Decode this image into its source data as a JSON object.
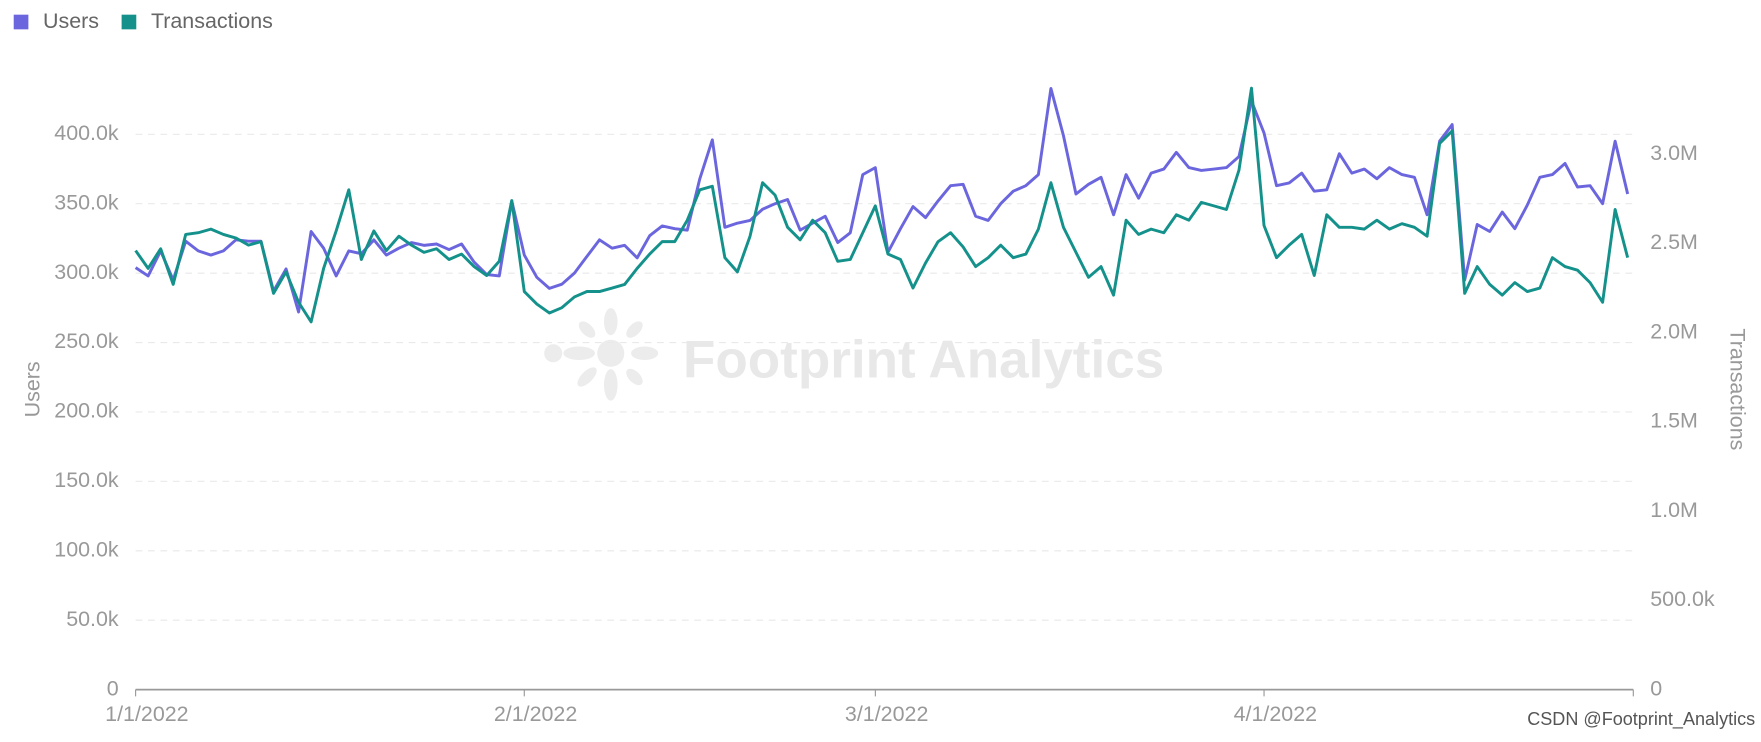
{
  "chart_data": {
    "type": "line",
    "legend": "top-left",
    "grid": true,
    "y_label": "Users",
    "y2_label": "Transactions",
    "watermark": "Footprint Analytics",
    "credit": "CSDN @Footprint_Analytics",
    "x": [
      "1/1/2022",
      "1/2/2022",
      "1/3/2022",
      "1/4/2022",
      "1/5/2022",
      "1/6/2022",
      "1/7/2022",
      "1/8/2022",
      "1/9/2022",
      "1/10/2022",
      "1/11/2022",
      "1/12/2022",
      "1/13/2022",
      "1/14/2022",
      "1/15/2022",
      "1/16/2022",
      "1/17/2022",
      "1/18/2022",
      "1/19/2022",
      "1/20/2022",
      "1/21/2022",
      "1/22/2022",
      "1/23/2022",
      "1/24/2022",
      "1/25/2022",
      "1/26/2022",
      "1/27/2022",
      "1/28/2022",
      "1/29/2022",
      "1/30/2022",
      "1/31/2022",
      "2/1/2022",
      "2/2/2022",
      "2/3/2022",
      "2/4/2022",
      "2/5/2022",
      "2/6/2022",
      "2/7/2022",
      "2/8/2022",
      "2/9/2022",
      "2/10/2022",
      "2/11/2022",
      "2/12/2022",
      "2/13/2022",
      "2/14/2022",
      "2/15/2022",
      "2/16/2022",
      "2/17/2022",
      "2/18/2022",
      "2/19/2022",
      "2/20/2022",
      "2/21/2022",
      "2/22/2022",
      "2/23/2022",
      "2/24/2022",
      "2/25/2022",
      "2/26/2022",
      "2/27/2022",
      "2/28/2022",
      "3/1/2022",
      "3/2/2022",
      "3/3/2022",
      "3/4/2022",
      "3/5/2022",
      "3/6/2022",
      "3/7/2022",
      "3/8/2022",
      "3/9/2022",
      "3/10/2022",
      "3/11/2022",
      "3/12/2022",
      "3/13/2022",
      "3/14/2022",
      "3/15/2022",
      "3/16/2022",
      "3/17/2022",
      "3/18/2022",
      "3/19/2022",
      "3/20/2022",
      "3/21/2022",
      "3/22/2022",
      "3/23/2022",
      "3/24/2022",
      "3/25/2022",
      "3/26/2022",
      "3/27/2022",
      "3/28/2022",
      "3/29/2022",
      "3/30/2022",
      "3/31/2022",
      "4/1/2022",
      "4/2/2022",
      "4/3/2022",
      "4/4/2022",
      "4/5/2022",
      "4/6/2022",
      "4/7/2022",
      "4/8/2022",
      "4/9/2022",
      "4/10/2022",
      "4/11/2022",
      "4/12/2022",
      "4/13/2022",
      "4/14/2022",
      "4/15/2022",
      "4/16/2022",
      "4/17/2022",
      "4/18/2022",
      "4/19/2022",
      "4/20/2022",
      "4/21/2022",
      "4/22/2022",
      "4/23/2022",
      "4/24/2022",
      "4/25/2022",
      "4/26/2022",
      "4/27/2022",
      "4/28/2022",
      "4/29/2022",
      "4/30/2022"
    ],
    "xlim": [
      "1/1/2022",
      "4/30/2022"
    ],
    "xticks": [
      "1/1/2022",
      "2/1/2022",
      "3/1/2022",
      "4/1/2022"
    ],
    "ylim": [
      0,
      450000
    ],
    "yticks": [
      0,
      {
        "value": 50000,
        "label": "50.0k"
      },
      {
        "value": 100000,
        "label": "100.0k"
      },
      {
        "value": 150000,
        "label": "150.0k"
      },
      {
        "value": 200000,
        "label": "200.0k"
      },
      {
        "value": 250000,
        "label": "250.0k"
      },
      {
        "value": 300000,
        "label": "300.0k"
      },
      {
        "value": 350000,
        "label": "350.0k"
      },
      {
        "value": 400000,
        "label": "400.0k"
      }
    ],
    "y2lim": [
      0,
      3500000
    ],
    "y2ticks": [
      0,
      {
        "value": 500000,
        "label": "500.0k"
      },
      {
        "value": 1000000,
        "label": "1.0M"
      },
      {
        "value": 1500000,
        "label": "1.5M"
      },
      {
        "value": 2000000,
        "label": "2.0M"
      },
      {
        "value": 2500000,
        "label": "2.5M"
      },
      {
        "value": 3000000,
        "label": "3.0M"
      }
    ],
    "series": [
      {
        "name": "Users",
        "color": "#6b66de",
        "axis": "y",
        "values": [
          304000,
          298000,
          316000,
          295000,
          323000,
          316000,
          313000,
          316000,
          324000,
          323000,
          323000,
          287000,
          303000,
          272000,
          330000,
          318000,
          298000,
          316000,
          314000,
          324000,
          313000,
          318000,
          322000,
          320000,
          321000,
          317000,
          321000,
          308000,
          299000,
          298000,
          352000,
          313000,
          297000,
          289000,
          292000,
          300000,
          312000,
          324000,
          318000,
          320000,
          311000,
          327000,
          334000,
          332000,
          331000,
          368000,
          396000,
          333000,
          336000,
          338000,
          346000,
          350000,
          353000,
          331000,
          336000,
          341000,
          322000,
          329000,
          371000,
          376000,
          315000,
          332000,
          348000,
          340000,
          352000,
          363000,
          364000,
          341000,
          338000,
          350000,
          359000,
          363000,
          371000,
          433000,
          399000,
          357000,
          364000,
          369000,
          342000,
          371000,
          354000,
          372000,
          375000,
          387000,
          376000,
          374000,
          375000,
          376000,
          384000,
          424000,
          401000,
          363000,
          365000,
          372000,
          359000,
          360000,
          386000,
          372000,
          375000,
          368000,
          376000,
          371000,
          369000,
          342000,
          395000,
          407000,
          295000,
          335000,
          330000,
          344000,
          332000,
          349000,
          369000,
          371000,
          379000,
          362000,
          363000,
          350000,
          395000,
          357000
        ]
      },
      {
        "name": "Transactions",
        "color": "#14918b",
        "axis": "y2",
        "values": [
          2460000,
          2360000,
          2470000,
          2270000,
          2550000,
          2560000,
          2580000,
          2550000,
          2530000,
          2490000,
          2510000,
          2220000,
          2340000,
          2170000,
          2060000,
          2360000,
          2570000,
          2800000,
          2410000,
          2570000,
          2460000,
          2540000,
          2490000,
          2450000,
          2470000,
          2410000,
          2440000,
          2370000,
          2320000,
          2400000,
          2740000,
          2230000,
          2160000,
          2110000,
          2140000,
          2200000,
          2230000,
          2230000,
          2250000,
          2270000,
          2360000,
          2440000,
          2510000,
          2510000,
          2630000,
          2800000,
          2820000,
          2420000,
          2340000,
          2540000,
          2840000,
          2770000,
          2590000,
          2520000,
          2630000,
          2560000,
          2400000,
          2410000,
          2560000,
          2710000,
          2440000,
          2410000,
          2250000,
          2390000,
          2510000,
          2560000,
          2480000,
          2370000,
          2420000,
          2490000,
          2420000,
          2440000,
          2580000,
          2840000,
          2590000,
          2450000,
          2310000,
          2370000,
          2210000,
          2630000,
          2550000,
          2580000,
          2560000,
          2660000,
          2630000,
          2730000,
          2710000,
          2690000,
          2910000,
          3370000,
          2600000,
          2420000,
          2490000,
          2550000,
          2320000,
          2660000,
          2590000,
          2590000,
          2580000,
          2630000,
          2580000,
          2610000,
          2590000,
          2540000,
          3060000,
          3130000,
          2220000,
          2370000,
          2270000,
          2210000,
          2280000,
          2230000,
          2250000,
          2420000,
          2370000,
          2350000,
          2280000,
          2170000,
          2690000,
          2420000
        ]
      }
    ]
  }
}
